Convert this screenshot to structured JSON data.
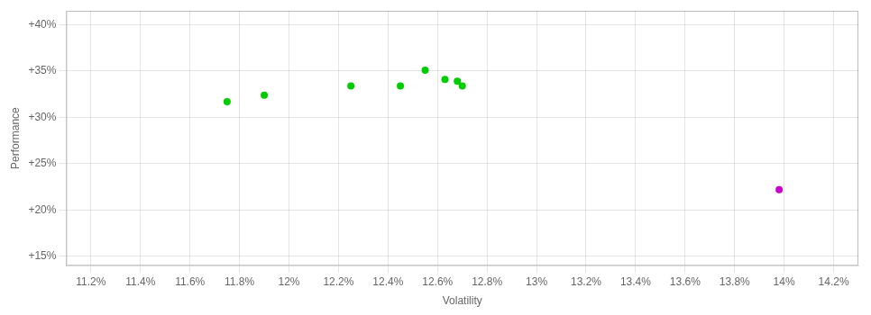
{
  "chart_data": {
    "type": "scatter",
    "xlabel": "Volatility",
    "ylabel": "Performance",
    "xlim": [
      0.111,
      0.143
    ],
    "ylim": [
      0.14,
      0.415
    ],
    "xticks": [
      {
        "value": 0.112,
        "label": "11.2%"
      },
      {
        "value": 0.114,
        "label": "11.4%"
      },
      {
        "value": 0.116,
        "label": "11.6%"
      },
      {
        "value": 0.118,
        "label": "11.8%"
      },
      {
        "value": 0.12,
        "label": "12%"
      },
      {
        "value": 0.122,
        "label": "12.2%"
      },
      {
        "value": 0.124,
        "label": "12.4%"
      },
      {
        "value": 0.126,
        "label": "12.6%"
      },
      {
        "value": 0.128,
        "label": "12.8%"
      },
      {
        "value": 0.13,
        "label": "13%"
      },
      {
        "value": 0.132,
        "label": "13.2%"
      },
      {
        "value": 0.134,
        "label": "13.4%"
      },
      {
        "value": 0.136,
        "label": "13.6%"
      },
      {
        "value": 0.138,
        "label": "13.8%"
      },
      {
        "value": 0.14,
        "label": "14%"
      },
      {
        "value": 0.142,
        "label": "14.2%"
      }
    ],
    "yticks": [
      {
        "value": 0.15,
        "label": "+15%"
      },
      {
        "value": 0.2,
        "label": "+20%"
      },
      {
        "value": 0.25,
        "label": "+25%"
      },
      {
        "value": 0.3,
        "label": "+30%"
      },
      {
        "value": 0.35,
        "label": "+35%"
      },
      {
        "value": 0.4,
        "label": "+40%"
      }
    ],
    "grid": true,
    "series": [
      {
        "color": "#00cc00",
        "x": [
          0.1175,
          0.119,
          0.1225,
          0.1245,
          0.1255,
          0.1263,
          0.1268,
          0.127
        ],
        "values": [
          0.317,
          0.324,
          0.334,
          0.334,
          0.351,
          0.341,
          0.339,
          0.334
        ]
      },
      {
        "color": "#cc00cc",
        "x": [
          0.1398
        ],
        "values": [
          0.222
        ]
      }
    ]
  }
}
